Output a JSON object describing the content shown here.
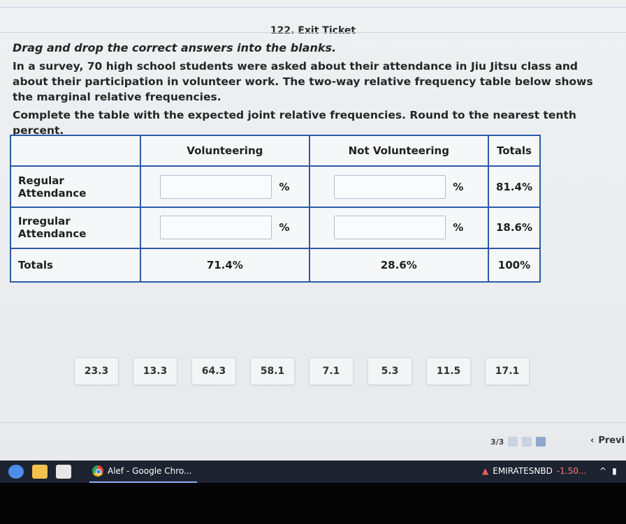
{
  "header": {
    "title": "122. Exit Ticket"
  },
  "instructions": {
    "heading": "Drag and drop the correct answers into the blanks.",
    "paragraph": "In a survey, 70 high school students were asked about their attendance in Jiu Jitsu class and about their participation in volunteer work. The two-way relative frequency table below shows the marginal relative frequencies.",
    "task": "Complete the table with the expected joint relative frequencies. Round to the nearest tenth percent."
  },
  "table": {
    "headers": [
      "",
      "Volunteering",
      "Not Volunteering",
      "Totals"
    ],
    "rows": [
      {
        "label": "Regular Attendance",
        "total": "81.4%"
      },
      {
        "label": "Irregular Attendance",
        "total": "18.6%"
      }
    ],
    "totals_row": {
      "label": "Totals",
      "volunteering": "71.4%",
      "not_volunteering": "28.6%",
      "grand_total": "100%"
    },
    "percent_symbol": "%"
  },
  "answer_chips": [
    "23.3",
    "13.3",
    "64.3",
    "58.1",
    "7.1",
    "5.3",
    "11.5",
    "17.1"
  ],
  "pager": {
    "text": "3/3"
  },
  "nav": {
    "prev_label": "Previ"
  },
  "taskbar": {
    "chrome_label": "Alef - Google Chro...",
    "stock_name": "EMIRATESNBD",
    "stock_change": "-1.50..."
  }
}
